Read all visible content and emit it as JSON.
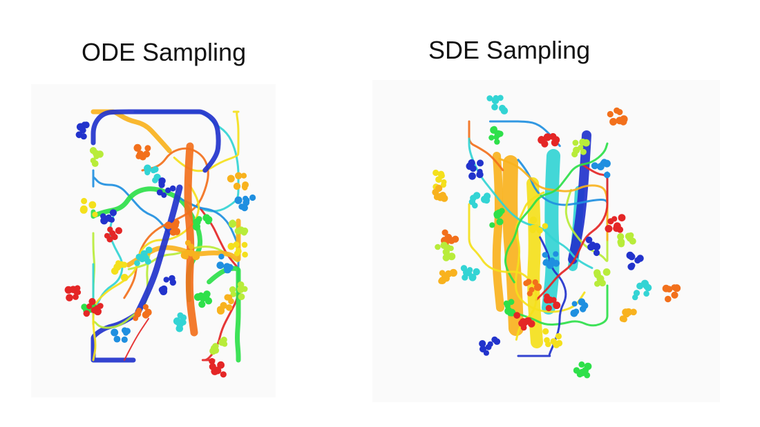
{
  "titles": {
    "ode": "ODE Sampling",
    "sde": "SDE Sampling"
  },
  "palette": [
    "#2233cc",
    "#1f8fe0",
    "#33d4d4",
    "#2ee04a",
    "#b8ec3a",
    "#f4e01c",
    "#f8b21e",
    "#f2701c",
    "#e42626"
  ]
}
